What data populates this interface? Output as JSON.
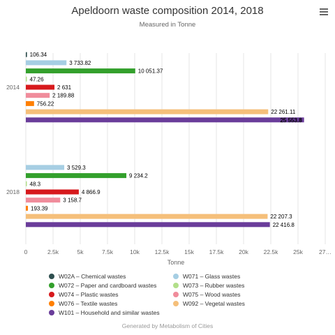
{
  "chart_data": {
    "type": "bar",
    "orientation": "horizontal",
    "title": "Apeldoorn waste composition 2014, 2018",
    "subtitle": "Measured in Tonne",
    "xlabel": "Tonne",
    "ylabel": "",
    "categories": [
      "2014",
      "2018"
    ],
    "xlim": [
      0,
      27500
    ],
    "x_ticks": [
      "0",
      "2.5k",
      "5k",
      "7.5k",
      "10k",
      "12.5k",
      "15k",
      "17.5k",
      "20k",
      "22.5k",
      "25k",
      "27…"
    ],
    "grid": true,
    "legend_position": "bottom",
    "series": [
      {
        "name": "W02A – Chemical wastes",
        "color": "#2f4f4f",
        "values": [
          106.34,
          null
        ],
        "labels": [
          "106.34",
          ""
        ]
      },
      {
        "name": "W071 – Glass wastes",
        "color": "#a6cee3",
        "values": [
          3733.82,
          3529.3
        ],
        "labels": [
          "3 733.82",
          "3 529.3"
        ]
      },
      {
        "name": "W072 – Paper and cardboard wastes",
        "color": "#33a02c",
        "values": [
          10051.37,
          9234.2
        ],
        "labels": [
          "10 051.37",
          "9 234.2"
        ]
      },
      {
        "name": "W073 – Rubber wastes",
        "color": "#b2df8a",
        "values": [
          47.26,
          48.3
        ],
        "labels": [
          "47.26",
          "48.3"
        ]
      },
      {
        "name": "W074 – Plastic wastes",
        "color": "#d7191c",
        "values": [
          2631,
          4866.9
        ],
        "labels": [
          "2 631",
          "4 866.9"
        ]
      },
      {
        "name": "W075 – Wood wastes",
        "color": "#f08c9b",
        "values": [
          2189.88,
          3158.7
        ],
        "labels": [
          "2 189.88",
          "3 158.7"
        ]
      },
      {
        "name": "W076 – Textile wastes",
        "color": "#ff7f00",
        "values": [
          756.22,
          193.39
        ],
        "labels": [
          "756.22",
          "193.39"
        ]
      },
      {
        "name": "W092 – Vegetal wastes",
        "color": "#f5bf7a",
        "values": [
          22261.11,
          22207.3
        ],
        "labels": [
          "22 261.11",
          "22 207.3"
        ]
      },
      {
        "name": "W101 – Household and similar wastes",
        "color": "#6a3d9a",
        "values": [
          25553.8,
          22416.8
        ],
        "labels": [
          "25 553.8",
          "22 416.8"
        ]
      }
    ]
  },
  "credit": "Generated by Metabolism of Cities",
  "menu_icon": "hamburger-menu-icon"
}
